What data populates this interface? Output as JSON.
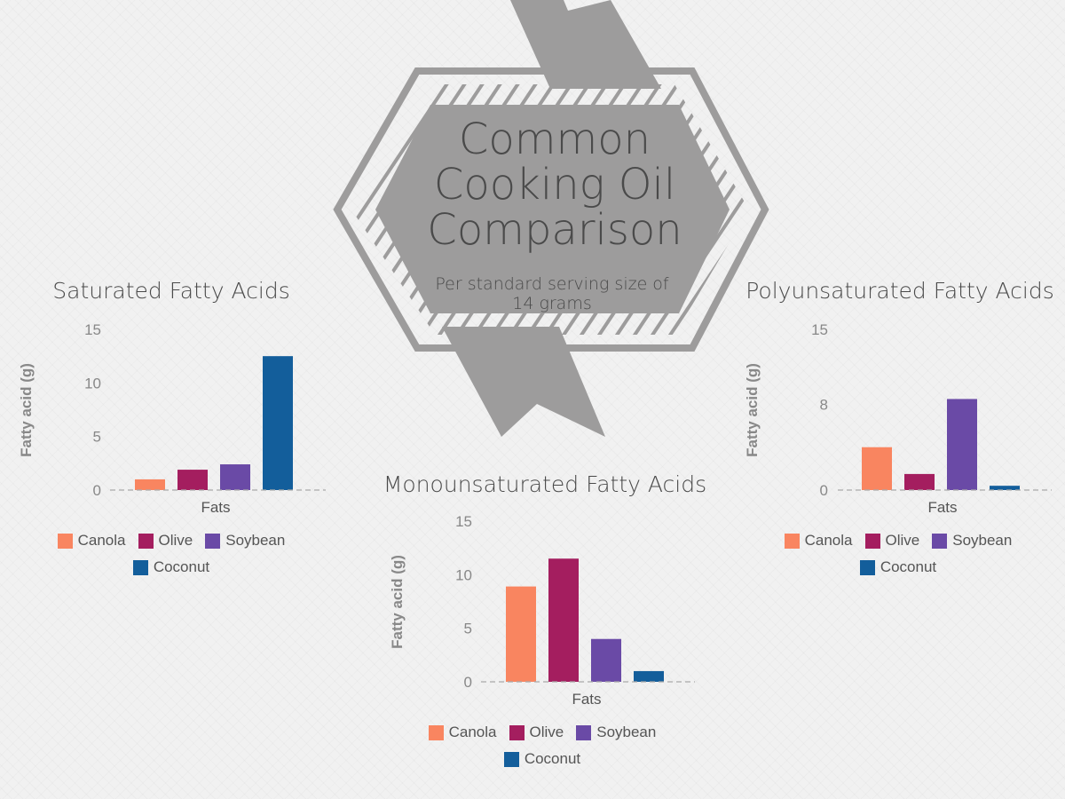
{
  "header": {
    "title_lines": [
      "Common",
      "Cooking Oil",
      "Comparison"
    ],
    "subtitle_lines": [
      "Per standard serving size of",
      "14 grams"
    ]
  },
  "colors": {
    "Canola": "#f98560",
    "Olive": "#a41e5f",
    "Soybean": "#6a4aa6",
    "Coconut": "#135e9b",
    "badge": "#9d9c9c",
    "text": "#555555"
  },
  "chart_data": [
    {
      "type": "bar",
      "title": "Saturated Fatty Acids",
      "xlabel": "Fats",
      "ylabel": "Fatty acid (g)",
      "categories": [
        "Fats"
      ],
      "ylim": [
        0,
        15
      ],
      "yticks": [
        0,
        5,
        10,
        15
      ],
      "grid": false,
      "legend": "bottom",
      "series": [
        {
          "name": "Canola",
          "values": [
            1.0
          ]
        },
        {
          "name": "Olive",
          "values": [
            1.9
          ]
        },
        {
          "name": "Soybean",
          "values": [
            2.4
          ]
        },
        {
          "name": "Coconut",
          "values": [
            12.5
          ]
        }
      ]
    },
    {
      "type": "bar",
      "title": "Monounsaturated Fatty Acids",
      "xlabel": "Fats",
      "ylabel": "Fatty acid (g)",
      "categories": [
        "Fats"
      ],
      "ylim": [
        0,
        15
      ],
      "yticks": [
        0,
        5,
        10,
        15
      ],
      "grid": false,
      "legend": "bottom",
      "series": [
        {
          "name": "Canola",
          "values": [
            8.9
          ]
        },
        {
          "name": "Olive",
          "values": [
            11.5
          ]
        },
        {
          "name": "Soybean",
          "values": [
            4.0
          ]
        },
        {
          "name": "Coconut",
          "values": [
            1.0
          ]
        }
      ]
    },
    {
      "type": "bar",
      "title": "Polyunsaturated Fatty Acids",
      "xlabel": "Fats",
      "ylabel": "Fatty acid (g)",
      "categories": [
        "Fats"
      ],
      "ylim": [
        0,
        15
      ],
      "yticks": [
        0,
        8,
        15
      ],
      "grid": false,
      "legend": "bottom",
      "series": [
        {
          "name": "Canola",
          "values": [
            4.0
          ]
        },
        {
          "name": "Olive",
          "values": [
            1.5
          ]
        },
        {
          "name": "Soybean",
          "values": [
            8.5
          ]
        },
        {
          "name": "Coconut",
          "values": [
            0.4
          ]
        }
      ]
    }
  ]
}
